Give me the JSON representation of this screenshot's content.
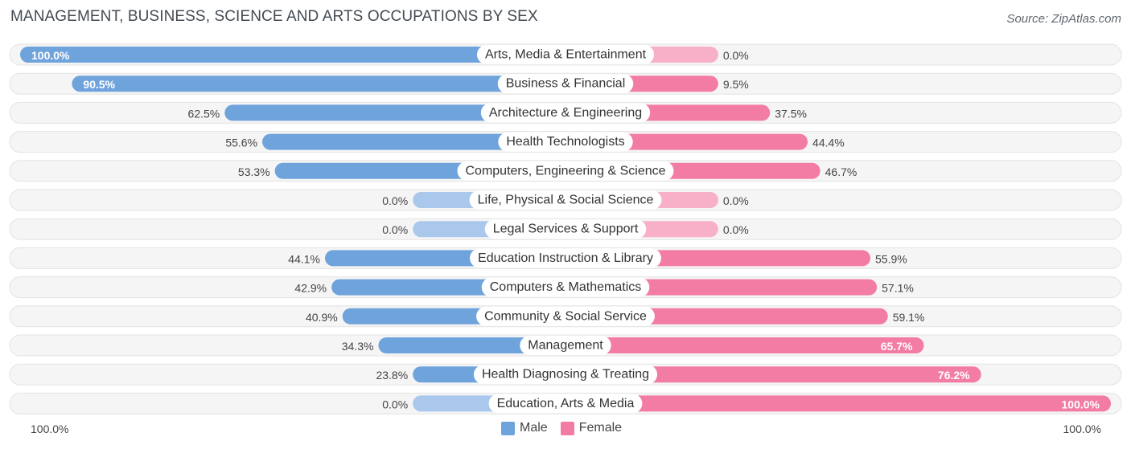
{
  "header": {
    "title": "MANAGEMENT, BUSINESS, SCIENCE AND ARTS OCCUPATIONS BY SEX",
    "source": "Source: ZipAtlas.com"
  },
  "axis": {
    "left_label": "100.0%",
    "right_label": "100.0%"
  },
  "legend": {
    "male_label": "Male",
    "female_label": "Female"
  },
  "colors": {
    "male": "#6fa3dc",
    "male_light": "#aac8ec",
    "female": "#f27ca4",
    "female_light": "#f7b0c8",
    "track": "#efefef"
  },
  "chart_data": {
    "type": "bar",
    "orientation": "horizontal-diverging",
    "title": "MANAGEMENT, BUSINESS, SCIENCE AND ARTS OCCUPATIONS BY SEX",
    "xlim": [
      -100,
      100
    ],
    "legend_position": "bottom-center",
    "categories": [
      "Arts, Media & Entertainment",
      "Business & Financial",
      "Architecture & Engineering",
      "Health Technologists",
      "Computers, Engineering & Science",
      "Life, Physical & Social Science",
      "Legal Services & Support",
      "Education Instruction & Library",
      "Computers & Mathematics",
      "Community & Social Service",
      "Management",
      "Health Diagnosing & Treating",
      "Education, Arts & Media"
    ],
    "series": [
      {
        "name": "Male",
        "values": [
          100.0,
          90.5,
          62.5,
          55.6,
          53.3,
          0.0,
          0.0,
          44.1,
          42.9,
          40.9,
          34.3,
          23.8,
          0.0
        ]
      },
      {
        "name": "Female",
        "values": [
          0.0,
          9.5,
          37.5,
          44.4,
          46.7,
          0.0,
          0.0,
          55.9,
          57.1,
          59.1,
          65.7,
          76.2,
          100.0
        ]
      }
    ],
    "male_labels": [
      "100.0%",
      "90.5%",
      "62.5%",
      "55.6%",
      "53.3%",
      "0.0%",
      "0.0%",
      "44.1%",
      "42.9%",
      "40.9%",
      "34.3%",
      "23.8%",
      "0.0%"
    ],
    "female_labels": [
      "0.0%",
      "9.5%",
      "37.5%",
      "44.4%",
      "46.7%",
      "0.0%",
      "0.0%",
      "55.9%",
      "57.1%",
      "59.1%",
      "65.7%",
      "76.2%",
      "100.0%"
    ]
  }
}
